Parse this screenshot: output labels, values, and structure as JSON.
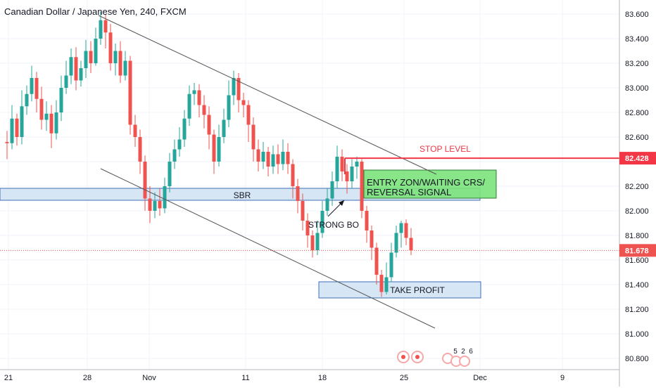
{
  "chart_data": {
    "type": "candlestick",
    "title": "Canadian Dollar / Japanese Yen, 240, FXCM",
    "y_axis": {
      "ticks": [
        "83.600",
        "83.400",
        "83.200",
        "83.000",
        "82.800",
        "82.600",
        "82.400",
        "82.200",
        "82.000",
        "81.800",
        "81.600",
        "81.400",
        "81.200",
        "81.000",
        "80.800"
      ],
      "range": [
        80.7,
        83.72
      ],
      "position": "right"
    },
    "x_axis": {
      "ticks": [
        "21",
        "28",
        "Nov",
        "11",
        "18",
        "25",
        "Dec",
        "9"
      ]
    },
    "current_price": {
      "value": 81.678,
      "label": "81.678",
      "color": "#ef5350"
    },
    "stop_level": {
      "value": 82.428,
      "label": "82.428",
      "text": "STOP LEVEL",
      "color": "#f23645"
    },
    "annotations": {
      "sbr": "SBR",
      "entry": [
        "ENTRY ZON/WAITING CRS/",
        "REVERSAL SIGNAL"
      ],
      "strong_bo": "STRONG BO",
      "take_profit": "TAKE PROFIT"
    },
    "event_labels": [
      "5",
      "2",
      "6"
    ],
    "colors": {
      "up": "#26a69a",
      "down": "#ef5350",
      "zone_fill": "#cfe2f3",
      "zone_stroke": "#3d6fb6",
      "entry_fill": "#7be27b",
      "trend_line": "#555555"
    },
    "candles": [
      [
        82.56,
        82.55,
        82.65,
        82.42
      ],
      [
        82.55,
        82.75,
        82.86,
        82.5
      ],
      [
        82.75,
        82.6,
        82.79,
        82.53
      ],
      [
        82.6,
        82.85,
        82.98,
        82.54
      ],
      [
        82.85,
        82.95,
        83.02,
        82.78
      ],
      [
        82.95,
        83.08,
        83.18,
        82.89
      ],
      [
        83.08,
        82.91,
        83.13,
        82.8
      ],
      [
        82.91,
        82.74,
        83.01,
        82.66
      ],
      [
        82.74,
        82.79,
        82.89,
        82.65
      ],
      [
        82.79,
        82.63,
        82.86,
        82.51
      ],
      [
        82.63,
        82.8,
        82.9,
        82.58
      ],
      [
        82.8,
        83.0,
        83.1,
        82.73
      ],
      [
        83.0,
        83.1,
        83.22,
        82.95
      ],
      [
        83.1,
        83.25,
        83.32,
        83.03
      ],
      [
        83.25,
        83.06,
        83.33,
        82.98
      ],
      [
        83.06,
        83.16,
        83.22,
        83.01
      ],
      [
        83.16,
        83.3,
        83.39,
        83.08
      ],
      [
        83.3,
        83.2,
        83.38,
        83.12
      ],
      [
        83.2,
        83.4,
        83.49,
        83.18
      ],
      [
        83.4,
        83.55,
        83.62,
        83.35
      ],
      [
        83.55,
        83.45,
        83.6,
        83.32
      ],
      [
        83.45,
        83.2,
        83.52,
        83.14
      ],
      [
        83.2,
        83.3,
        83.36,
        83.1
      ],
      [
        83.3,
        83.1,
        83.38,
        83.04
      ],
      [
        83.1,
        83.22,
        83.3,
        83.06
      ],
      [
        83.22,
        82.7,
        83.26,
        82.62
      ],
      [
        82.7,
        82.6,
        82.78,
        82.52
      ],
      [
        82.6,
        82.4,
        82.66,
        82.3
      ],
      [
        82.4,
        82.1,
        82.45,
        82.0
      ],
      [
        82.1,
        82.0,
        82.2,
        81.9
      ],
      [
        82.0,
        82.08,
        82.15,
        81.94
      ],
      [
        82.08,
        82.02,
        82.18,
        81.96
      ],
      [
        82.02,
        82.2,
        82.27,
        81.98
      ],
      [
        82.2,
        82.4,
        82.47,
        82.15
      ],
      [
        82.4,
        82.5,
        82.58,
        82.34
      ],
      [
        82.5,
        82.58,
        82.68,
        82.44
      ],
      [
        82.58,
        82.75,
        82.82,
        82.52
      ],
      [
        82.75,
        82.95,
        83.02,
        82.69
      ],
      [
        82.95,
        82.98,
        83.04,
        82.86
      ],
      [
        82.98,
        82.86,
        83.03,
        82.76
      ],
      [
        82.86,
        82.78,
        82.94,
        82.67
      ],
      [
        82.78,
        82.62,
        82.85,
        82.5
      ],
      [
        82.62,
        82.4,
        82.66,
        82.3
      ],
      [
        82.4,
        82.6,
        82.7,
        82.36
      ],
      [
        82.6,
        82.74,
        82.83,
        82.55
      ],
      [
        82.74,
        82.94,
        83.06,
        82.68
      ],
      [
        82.94,
        83.08,
        83.14,
        82.86
      ],
      [
        83.08,
        82.9,
        83.12,
        82.8
      ],
      [
        82.9,
        82.86,
        82.96,
        82.76
      ],
      [
        82.86,
        82.7,
        82.9,
        82.56
      ],
      [
        82.7,
        82.5,
        82.76,
        82.4
      ],
      [
        82.5,
        82.4,
        82.58,
        82.32
      ],
      [
        82.4,
        82.48,
        82.56,
        82.34
      ],
      [
        82.48,
        82.36,
        82.52,
        82.28
      ],
      [
        82.36,
        82.46,
        82.53,
        82.3
      ],
      [
        82.46,
        82.38,
        82.54,
        82.3
      ],
      [
        82.38,
        82.48,
        82.58,
        82.33
      ],
      [
        82.48,
        82.38,
        82.55,
        82.3
      ],
      [
        82.38,
        82.2,
        82.42,
        82.1
      ],
      [
        82.2,
        82.08,
        82.26,
        81.98
      ],
      [
        82.08,
        81.92,
        82.14,
        81.84
      ],
      [
        81.92,
        81.8,
        81.98,
        81.7
      ],
      [
        81.8,
        81.68,
        81.84,
        81.62
      ],
      [
        81.68,
        81.82,
        81.92,
        81.64
      ],
      [
        81.82,
        82.0,
        82.08,
        81.78
      ],
      [
        82.0,
        82.1,
        82.18,
        81.96
      ],
      [
        82.1,
        82.24,
        82.32,
        82.04
      ],
      [
        82.24,
        82.44,
        82.53,
        82.18
      ],
      [
        82.44,
        82.32,
        82.5,
        82.24
      ],
      [
        82.32,
        82.24,
        82.38,
        82.14
      ],
      [
        82.24,
        82.36,
        82.42,
        82.18
      ],
      [
        82.36,
        82.4,
        82.44,
        82.26
      ],
      [
        82.4,
        82.0,
        82.42,
        81.94
      ],
      [
        82.0,
        81.84,
        82.04,
        81.74
      ],
      [
        81.84,
        81.7,
        81.88,
        81.6
      ],
      [
        81.7,
        81.48,
        81.74,
        81.4
      ],
      [
        81.48,
        81.34,
        81.52,
        81.3
      ],
      [
        81.34,
        81.46,
        81.58,
        81.32
      ],
      [
        81.46,
        81.66,
        81.74,
        81.42
      ],
      [
        81.66,
        81.82,
        81.88,
        81.62
      ],
      [
        81.82,
        81.9,
        81.92,
        81.7
      ],
      [
        81.9,
        81.78,
        81.93,
        81.72
      ],
      [
        81.78,
        81.68,
        81.86,
        81.64
      ]
    ]
  }
}
